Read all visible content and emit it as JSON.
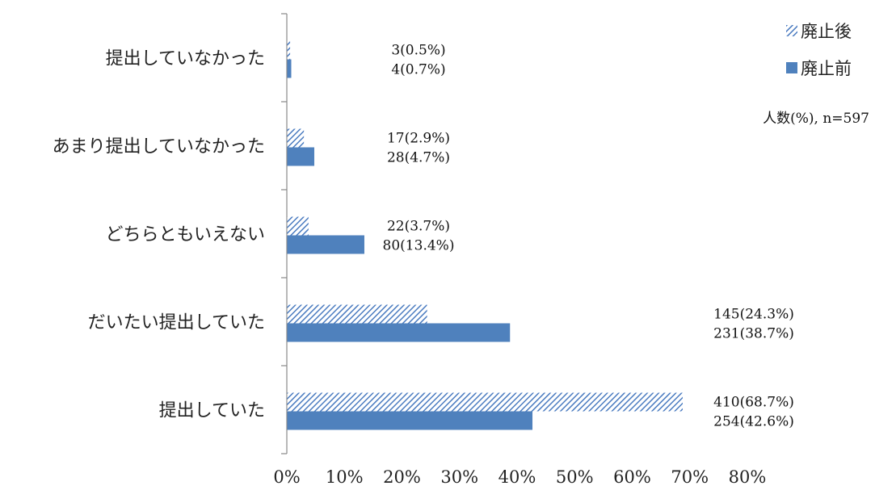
{
  "chart_data": {
    "type": "bar",
    "orientation": "horizontal",
    "categories": [
      "提出していなかった",
      "あまり提出していなかった",
      "どちらともいえない",
      "だいたい提出していた",
      "提出していた"
    ],
    "series": [
      {
        "name": "廃止後",
        "values": [
          0.5,
          2.9,
          3.7,
          24.3,
          68.7
        ],
        "labels": [
          "3(0.5%)",
          "17(2.9%)",
          "22(3.7%)",
          "145(24.3%)",
          "410(68.7%)"
        ],
        "color": "#4a7bc0",
        "pattern": "diagonal-hatch"
      },
      {
        "name": "廃止前",
        "values": [
          0.7,
          4.7,
          13.4,
          38.7,
          42.6
        ],
        "labels": [
          "4(0.7%)",
          "28(4.7%)",
          "80(13.4%)",
          "231(38.7%)",
          "254(42.6%)"
        ],
        "color": "#4f81bd",
        "pattern": "solid"
      }
    ],
    "xlim": [
      0,
      80
    ],
    "xticks": [
      "0%",
      "10%",
      "20%",
      "30%",
      "40%",
      "50%",
      "60%",
      "70%",
      "80%"
    ],
    "note": "人数(%), n=597",
    "legend_position": "top-right",
    "grid": false
  }
}
